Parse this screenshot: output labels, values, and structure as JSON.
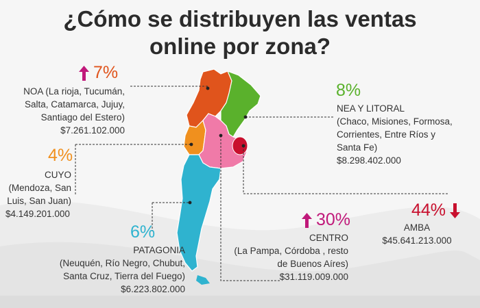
{
  "title_line1": "¿Cómo se distribuyen las ventas",
  "title_line2": "online por zona?",
  "colors": {
    "noa": "#e0541c",
    "nea": "#5ab12c",
    "cuyo": "#f0901e",
    "centro": "#f07aa8",
    "amba": "#c8102e",
    "patagonia": "#2fb3cf",
    "arrow_up": "#c0197a",
    "arrow_down": "#c8102e"
  },
  "regions": [
    {
      "id": "noa",
      "pct": "7%",
      "trend": "up",
      "name": "NOA (La rioja, Tucumán,",
      "lines": [
        "Salta, Catamarca, Jujuy,",
        "Santiago del Estero)"
      ],
      "amount": "$7.261.102.000"
    },
    {
      "id": "nea",
      "pct": "8%",
      "trend": "none",
      "name": "NEA Y LITORAL",
      "lines": [
        "(Chaco, Misiones, Formosa,",
        "Corrientes, Entre Ríos y",
        "Santa Fe)"
      ],
      "amount": "$8.298.402.000"
    },
    {
      "id": "cuyo",
      "pct": "4%",
      "trend": "none",
      "name": "CUYO",
      "lines": [
        "(Mendoza, San",
        "Luis, San Juan)"
      ],
      "amount": "$4.149.201.000"
    },
    {
      "id": "amba",
      "pct": "44%",
      "trend": "down",
      "name": "AMBA",
      "lines": [],
      "amount": "$45.641.213.000"
    },
    {
      "id": "centro",
      "pct": "30%",
      "trend": "up",
      "name": "CENTRO",
      "lines": [
        "(La Pampa, Córdoba , resto",
        "de Buenos Aíres)"
      ],
      "amount": "$31.119.009.000"
    },
    {
      "id": "patagonia",
      "pct": "6%",
      "trend": "none",
      "name": "PATAGONIA",
      "lines": [
        "(Neuquén, Río Negro, Chubut,",
        "Santa Cruz, Tierra del Fuego)"
      ],
      "amount": "$6.223.802.000"
    }
  ]
}
